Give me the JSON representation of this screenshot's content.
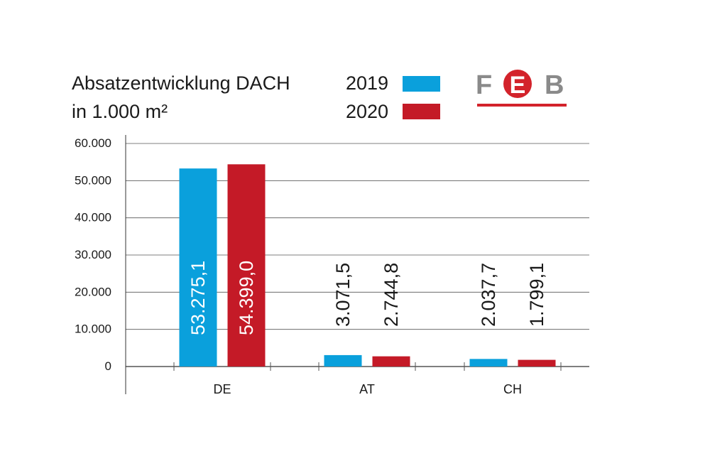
{
  "header": {
    "title_line1": "Absatzentwicklung DACH",
    "title_line2": "in 1.000 m²"
  },
  "logo": {
    "text": "FEB",
    "colors": {
      "gray": "#8a8a8a",
      "red": "#d3232b"
    }
  },
  "chart_data": {
    "type": "bar",
    "categories": [
      "DE",
      "AT",
      "CH"
    ],
    "series": [
      {
        "name": "2019",
        "color": "#0aa0dc",
        "values": [
          53275.1,
          3071.5,
          2037.7
        ],
        "labels": [
          "53.275,1",
          "3.071,5",
          "2.037,7"
        ]
      },
      {
        "name": "2020",
        "color": "#c41a27",
        "values": [
          54399.0,
          2744.8,
          1799.1
        ],
        "labels": [
          "54.399,0",
          "2.744,8",
          "1.799,1"
        ]
      }
    ],
    "yticks": [
      "0",
      "10.000",
      "20.000",
      "30.000",
      "40.000",
      "50.000",
      "60.000"
    ],
    "ylim": [
      0,
      60000
    ],
    "grid": true,
    "legend_position": "top-center"
  }
}
